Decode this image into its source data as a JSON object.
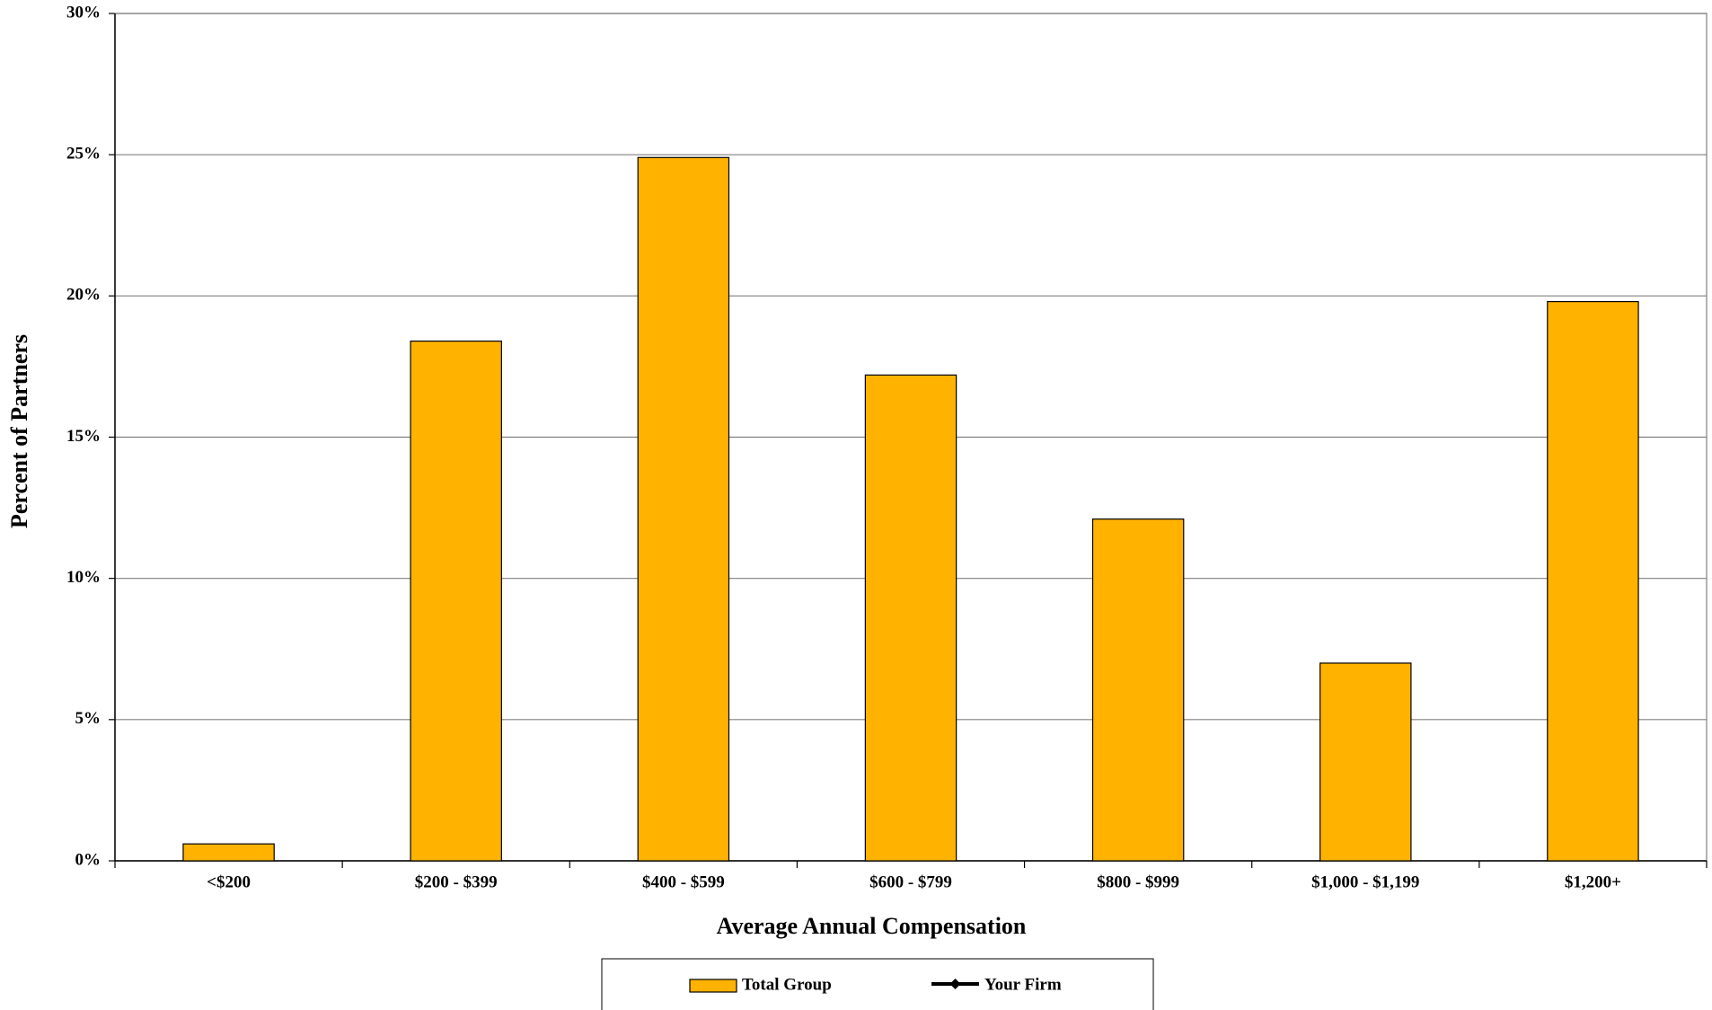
{
  "chart_data": {
    "type": "bar",
    "x_label": "Average Annual Compensation",
    "y_label": "Percent of Partners",
    "categories": [
      "<$200",
      "$200 - $399",
      "$400 - $599",
      "$600 - $799",
      "$800 - $999",
      "$1,000 - $1,199",
      "$1,200+"
    ],
    "series": [
      {
        "name": "Total Group",
        "type": "bar",
        "color": "#FFB300",
        "values": [
          0.6,
          18.4,
          24.9,
          17.2,
          12.1,
          7.0,
          19.8
        ]
      },
      {
        "name": "Your Firm",
        "type": "line",
        "color": "#000000",
        "values": [
          null,
          null,
          null,
          null,
          null,
          null,
          null
        ]
      }
    ],
    "ylim": [
      0,
      30
    ],
    "yticks": [
      {
        "value": 0,
        "label": "0%"
      },
      {
        "value": 5,
        "label": "5%"
      },
      {
        "value": 10,
        "label": "10%"
      },
      {
        "value": 15,
        "label": "15%"
      },
      {
        "value": 20,
        "label": "20%"
      },
      {
        "value": 25,
        "label": "25%"
      },
      {
        "value": 30,
        "label": "30%"
      }
    ],
    "grid": true
  }
}
